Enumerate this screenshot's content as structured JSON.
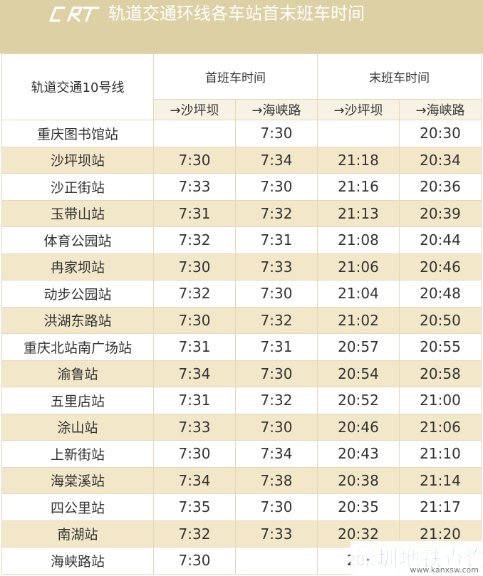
{
  "banner": {
    "title": "轨道交通环线各车站首末班车时间",
    "logo_text": "CRT",
    "logo_color": "#ffffff",
    "background": "#ddd0a4"
  },
  "table": {
    "line_name": "轨道交通10号线",
    "first_train_header": "首班车时间",
    "last_train_header": "末班车时间",
    "directions": [
      "→沙坪坝",
      "→海峡路",
      "→沙坪坝",
      "→海峡路"
    ],
    "rows": [
      {
        "station": "重庆图书馆站",
        "times": [
          "",
          "7:30",
          "",
          "20:30"
        ]
      },
      {
        "station": "沙坪坝站",
        "times": [
          "7:30",
          "7:34",
          "21:18",
          "20:34"
        ]
      },
      {
        "station": "沙正街站",
        "times": [
          "7:33",
          "7:30",
          "21:16",
          "20:36"
        ]
      },
      {
        "station": "玉带山站",
        "times": [
          "7:31",
          "7:32",
          "21:13",
          "20:39"
        ]
      },
      {
        "station": "体育公园站",
        "times": [
          "7:32",
          "7:31",
          "21:08",
          "20:44"
        ]
      },
      {
        "station": "冉家坝站",
        "times": [
          "7:30",
          "7:33",
          "21:06",
          "20:46"
        ]
      },
      {
        "station": "动步公园站",
        "times": [
          "7:32",
          "7:30",
          "21:04",
          "20:48"
        ]
      },
      {
        "station": "洪湖东路站",
        "times": [
          "7:30",
          "7:32",
          "21:02",
          "20:50"
        ]
      },
      {
        "station": "重庆北站南广场站",
        "times": [
          "7:31",
          "7:31",
          "20:57",
          "20:55"
        ]
      },
      {
        "station": "渝鲁站",
        "times": [
          "7:34",
          "7:30",
          "20:54",
          "20:58"
        ]
      },
      {
        "station": "五里店站",
        "times": [
          "7:31",
          "7:32",
          "20:52",
          "21:00"
        ]
      },
      {
        "station": "涂山站",
        "times": [
          "7:33",
          "7:30",
          "20:46",
          "21:06"
        ]
      },
      {
        "station": "上新街站",
        "times": [
          "7:30",
          "7:34",
          "20:43",
          "21:10"
        ]
      },
      {
        "station": "海棠溪站",
        "times": [
          "7:34",
          "7:38",
          "20:38",
          "21:14"
        ]
      },
      {
        "station": "四公里站",
        "times": [
          "7:35",
          "7:30",
          "20:35",
          "21:17"
        ]
      },
      {
        "station": "南湖站",
        "times": [
          "7:32",
          "7:33",
          "20:32",
          "21:20"
        ]
      },
      {
        "station": "海峡路站",
        "times": [
          "7:30",
          "",
          "20:",
          ""
        ]
      }
    ],
    "colors": {
      "line_name": "#d9c48a",
      "row_shade": "#f2e7c9",
      "direction_row": "#f7f2e4",
      "border": "#e3d8ba"
    }
  },
  "watermark": {
    "text": "深圳地铁查询",
    "url": "www.kanxsw.com",
    "color": "#1f7fbf"
  }
}
